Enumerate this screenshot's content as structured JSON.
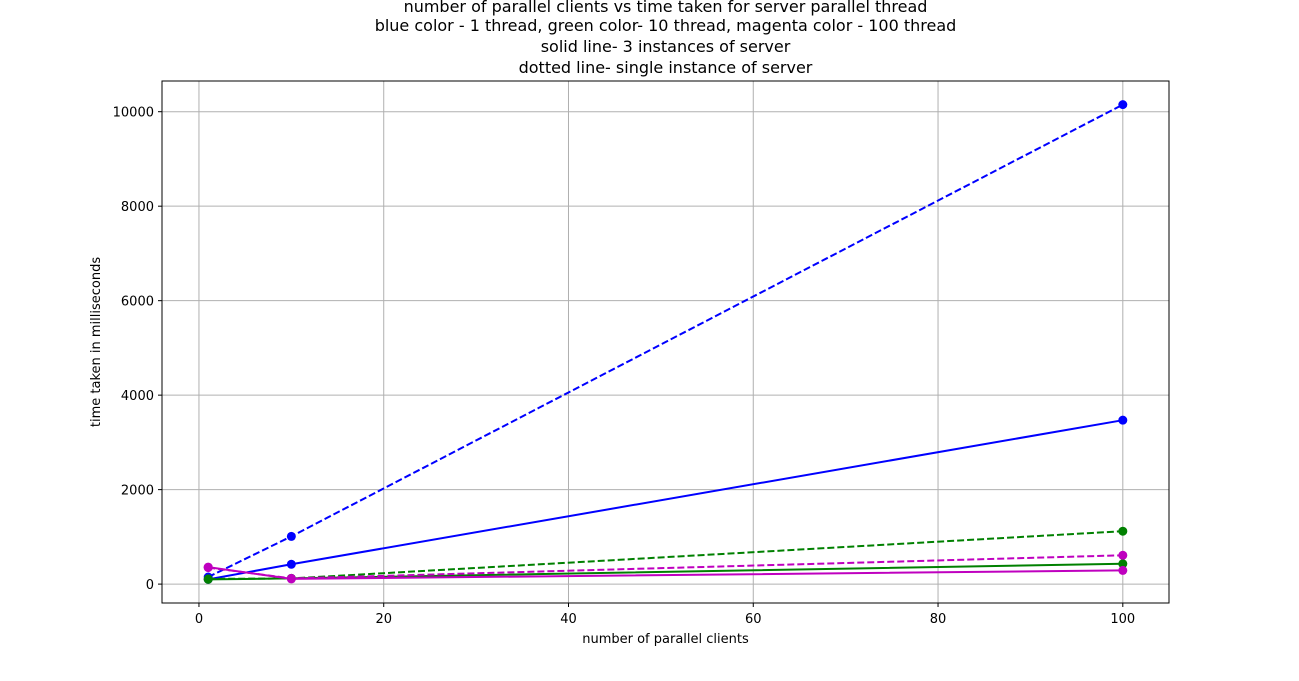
{
  "chart_data": {
    "type": "line",
    "title_lines": [
      "number of parallel clients vs time taken for server parallel thread",
      "blue color - 1 thread, green color- 10 thread, magenta color - 100 thread",
      "solid line- 3 instances of server",
      "dotted line- single instance of server"
    ],
    "xlabel": "number of parallel clients",
    "ylabel": "time taken in milliseconds",
    "xlim": [
      -4,
      105
    ],
    "ylim": [
      -400,
      10650
    ],
    "xticks": [
      0,
      20,
      40,
      60,
      80,
      100
    ],
    "yticks": [
      0,
      2000,
      4000,
      6000,
      8000,
      10000
    ],
    "x_tick_labels": [
      "0",
      "20",
      "40",
      "60",
      "80",
      "100"
    ],
    "y_tick_labels": [
      "0",
      "2000",
      "4000",
      "6000",
      "8000",
      "10000"
    ],
    "grid": true,
    "marker": "circle",
    "series": [
      {
        "color": "#0000ff",
        "linestyle": "dashed",
        "x": [
          1,
          10,
          100
        ],
        "y": [
          150,
          1010,
          10150
        ]
      },
      {
        "color": "#0000ff",
        "linestyle": "solid",
        "x": [
          1,
          10,
          100
        ],
        "y": [
          100,
          420,
          3470
        ]
      },
      {
        "color": "#008000",
        "linestyle": "dashed",
        "x": [
          1,
          10,
          100
        ],
        "y": [
          110,
          120,
          1120
        ]
      },
      {
        "color": "#008000",
        "linestyle": "solid",
        "x": [
          1,
          10,
          100
        ],
        "y": [
          100,
          120,
          430
        ]
      },
      {
        "color": "#bf00bf",
        "linestyle": "dashed",
        "x": [
          1,
          10,
          100
        ],
        "y": [
          350,
          120,
          610
        ]
      },
      {
        "color": "#bf00bf",
        "linestyle": "solid",
        "x": [
          1,
          10,
          100
        ],
        "y": [
          360,
          110,
          290
        ]
      }
    ]
  }
}
